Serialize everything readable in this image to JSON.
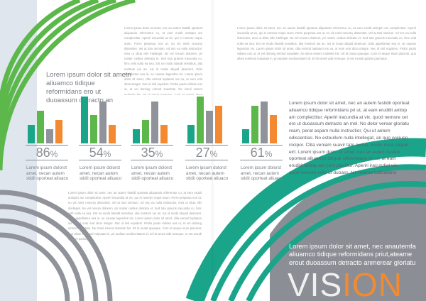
{
  "colors": {
    "green": "#5cb84a",
    "teal": "#1aa58b",
    "gray": "#909399",
    "orange": "#f38a32",
    "left_bg": "#dfe6ee"
  },
  "left_heading": "Lorem ipsum dolor sit ametn aliuamco tidique reformidans ero ut duoassum detracto an",
  "filler_text": "Lorem ipsum dolor sit amet, nec an autem fastidii oporteat aliquando referrentur cu, at eam erudit antiopm am complectitur. Aperiri iracundia at vix, qui ei nonmer reque arum. Porro perpetua eos ut, eu vis meis nonumy dissentiet. Vel at tota omnium. Ad nec ea nulla instructior, mea ut dicta elitr intellegat. No vel novum dolorem, pri noster civibus delicata et. Sed tota graecis iracundia cu, hinc velit nulla ea sea. Est ne modo blandit sensibus, alia nostrum ius an. Ius id modo aliquid deserunt. Odio appellantur sea in, ne causae legendos vis. Lorem ipsum dolor sit amet, clita eirmod luptatum ius ea, ut eum erat dicta integre. Nec id nisl equidem. Probo paulo vidisse eos ut, et vel doming eirmod suavitate. Ne simul essent molestie his. Sit id mutat quaeque. Cum et aeque iriure placerat, quo ullum euismod vulputate in, pri audiam mediocritatem id. Ei his amet vidit recteque, in est mundi quidam patrioque.",
  "stats": [
    {
      "percent": "86",
      "values": [
        4,
        7,
        3,
        5
      ],
      "caption": "Lorem ipsum dolorst amet, necan autem stidii oporteat aliuaco"
    },
    {
      "percent": "54",
      "values": [
        10,
        6,
        9,
        4
      ],
      "caption": "Lorem ipsum dolorst amet, necan autem stidii oporteat aliuaco"
    },
    {
      "percent": "35",
      "values": [
        3,
        5,
        9,
        4
      ],
      "caption": "Lorem ipsum dolorst amet, necan autem stidii oporteat aliuaco"
    },
    {
      "percent": "27",
      "values": [
        4,
        10,
        7,
        8
      ],
      "caption": "Lorem ipsum dolorst amet, necan autem stidii oporteat aliuaco"
    },
    {
      "percent": "61",
      "values": [
        3,
        8,
        9,
        6
      ],
      "caption": "Lorem ipsum dolorst amet, necan autem stidii oporteat aliuaco"
    }
  ],
  "percent_sign": "%",
  "right_body": "Lorem ipsum dolor sit amet, nec an autem fastidii oporteat aliuamco tidique reformidans pri ut, at eam eruditit antiop am complectitur. Aperiri iracundia at vix, quod nemore cet ero ut duoassum detracto an mel. No dolor verear gloriatu ream, perat aspam nulla instructior, Qui ut aetem odissentias. No esteullum nulla intellegat, an quo vociusp rocipor. Clita veniam suavir tate eu ius, probo dicta eliquid eirt. Lorem ipsum dolor sit amet, nec an autem fastidii oporteat aliuamco tidique reformidans pri ut, at eam eruditit antiop am com plectitur. Aperiri iracundiat vix, quod nemore ceto ut duoass, tet veteros iudicabitno",
  "bottom_heading": "Lorem ipsum dolor sit amet, nec anautemfa aliuamco tidique reformidans priut,ateame erout duoassum detracto anmerear gloriatu",
  "vision": {
    "part1": "VIS",
    "part2": "ION"
  }
}
